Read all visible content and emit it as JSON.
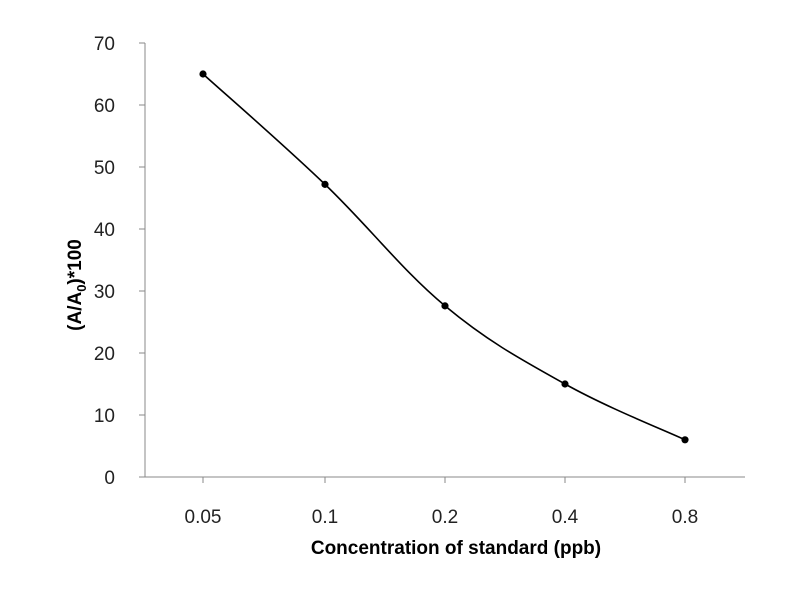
{
  "chart_data": {
    "type": "line",
    "categories": [
      "0.05",
      "0.1",
      "0.2",
      "0.4",
      "0.8"
    ],
    "series": [
      {
        "values": [
          65,
          47.2,
          27.6,
          15,
          6
        ]
      }
    ],
    "xlabel": "Concentration of standard (ppb)",
    "ylabel": {
      "prefix": "(A/A",
      "subscript": "0",
      "suffix": ")*100"
    },
    "ylim": [
      0,
      70
    ],
    "yticks": [
      "0",
      "10",
      "20",
      "30",
      "40",
      "50",
      "60",
      "70"
    ],
    "grid": false,
    "smooth": true,
    "colors": {
      "line": "#000000",
      "axis": "#888888",
      "text": "#222222"
    }
  }
}
